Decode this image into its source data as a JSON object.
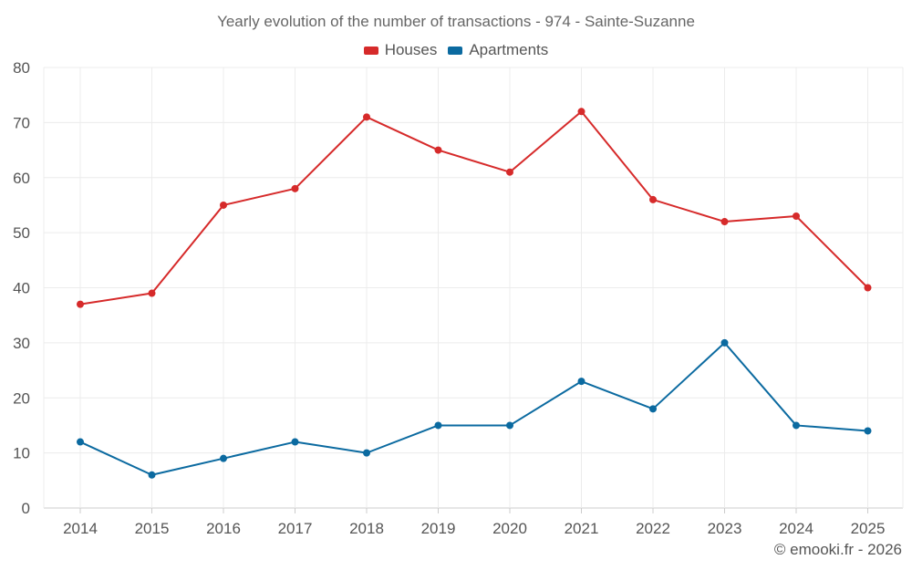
{
  "chart_data": {
    "type": "line",
    "title": "Yearly evolution of the number of transactions - 974 - Sainte-Suzanne",
    "categories": [
      "2014",
      "2015",
      "2016",
      "2017",
      "2018",
      "2019",
      "2020",
      "2021",
      "2022",
      "2023",
      "2024",
      "2025"
    ],
    "series": [
      {
        "name": "Houses",
        "color": "#d62a2a",
        "values": [
          37,
          39,
          55,
          58,
          71,
          65,
          61,
          72,
          56,
          52,
          53,
          40
        ]
      },
      {
        "name": "Apartments",
        "color": "#0b6aa0",
        "values": [
          12,
          6,
          9,
          12,
          10,
          15,
          15,
          23,
          18,
          30,
          15,
          14
        ]
      }
    ],
    "ylim": [
      0,
      80
    ],
    "yticks": [
      0,
      10,
      20,
      30,
      40,
      50,
      60,
      70,
      80
    ],
    "xlabel": "",
    "ylabel": "",
    "grid": true,
    "legend": "top-center"
  },
  "credit": "© emooki.fr - 2026"
}
